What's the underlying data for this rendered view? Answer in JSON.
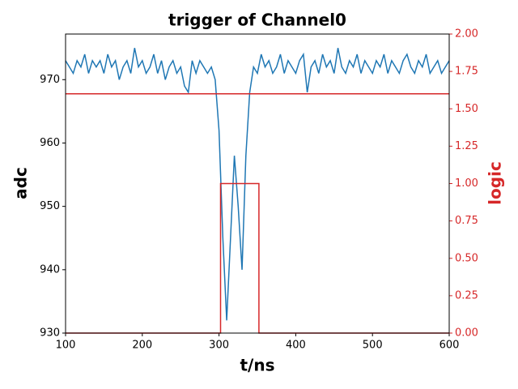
{
  "chart_data": {
    "type": "line",
    "title": "trigger of Channel0",
    "xlabel": "t/ns",
    "ylabel": "adc",
    "y2label": "logic",
    "y2color": "#d62728",
    "xlim": [
      100,
      600
    ],
    "xticks": [
      100,
      200,
      300,
      400,
      500,
      600
    ],
    "ylim": [
      930,
      977.2
    ],
    "yticks": [
      930,
      940,
      950,
      960,
      970
    ],
    "y2lim": [
      0,
      2
    ],
    "y2ticks": [
      {
        "value": 0,
        "label": "0.00"
      },
      {
        "value": 0.25,
        "label": "0.25"
      },
      {
        "value": 0.5,
        "label": "0.50"
      },
      {
        "value": 0.75,
        "label": "0.75"
      },
      {
        "value": 1,
        "label": "1.00"
      },
      {
        "value": 1.25,
        "label": "1.25"
      },
      {
        "value": 1.5,
        "label": "1.50"
      },
      {
        "value": 1.75,
        "label": "1.75"
      },
      {
        "value": 2,
        "label": "2.00"
      }
    ],
    "grid": false,
    "series": [
      {
        "color": "#1f77b4",
        "axis": "y",
        "x": [
          100,
          105,
          110,
          115,
          120,
          125,
          130,
          135,
          140,
          145,
          150,
          155,
          160,
          165,
          170,
          175,
          180,
          185,
          190,
          195,
          200,
          205,
          210,
          215,
          220,
          225,
          230,
          235,
          240,
          245,
          250,
          255,
          260,
          265,
          270,
          275,
          280,
          285,
          290,
          295,
          300,
          305,
          310,
          315,
          320,
          325,
          330,
          335,
          340,
          345,
          350,
          355,
          360,
          365,
          370,
          375,
          380,
          385,
          390,
          395,
          400,
          405,
          410,
          415,
          420,
          425,
          430,
          435,
          440,
          445,
          450,
          455,
          460,
          465,
          470,
          475,
          480,
          485,
          490,
          495,
          500,
          505,
          510,
          515,
          520,
          525,
          530,
          535,
          540,
          545,
          550,
          555,
          560,
          565,
          570,
          575,
          580,
          585,
          590,
          595,
          600
        ],
        "values": [
          973,
          972,
          971,
          973,
          972,
          974,
          971,
          973,
          972,
          973,
          971,
          974,
          972,
          973,
          970,
          972,
          973,
          971,
          975,
          972,
          973,
          971,
          972,
          974,
          971,
          973,
          970,
          972,
          973,
          971,
          972,
          969,
          968,
          973,
          971,
          973,
          972,
          971,
          972,
          970,
          962,
          945,
          932,
          945,
          958,
          950,
          940,
          958,
          968,
          972,
          971,
          974,
          972,
          973,
          971,
          972,
          974,
          971,
          973,
          972,
          971,
          973,
          974,
          968,
          972,
          973,
          971,
          974,
          972,
          973,
          971,
          975,
          972,
          971,
          973,
          972,
          974,
          971,
          973,
          972,
          971,
          973,
          972,
          974,
          971,
          973,
          972,
          971,
          973,
          974,
          972,
          971,
          973,
          972,
          974,
          971,
          972,
          973,
          971,
          972,
          973
        ]
      },
      {
        "color": "#d62728",
        "axis": "y2",
        "x": [
          100,
          600
        ],
        "values": [
          1.6,
          1.6
        ]
      },
      {
        "color": "#d62728",
        "axis": "y2",
        "x": [
          100,
          302,
          302,
          352,
          352,
          600
        ],
        "values": [
          0,
          0,
          1,
          1,
          0,
          0
        ]
      }
    ]
  }
}
